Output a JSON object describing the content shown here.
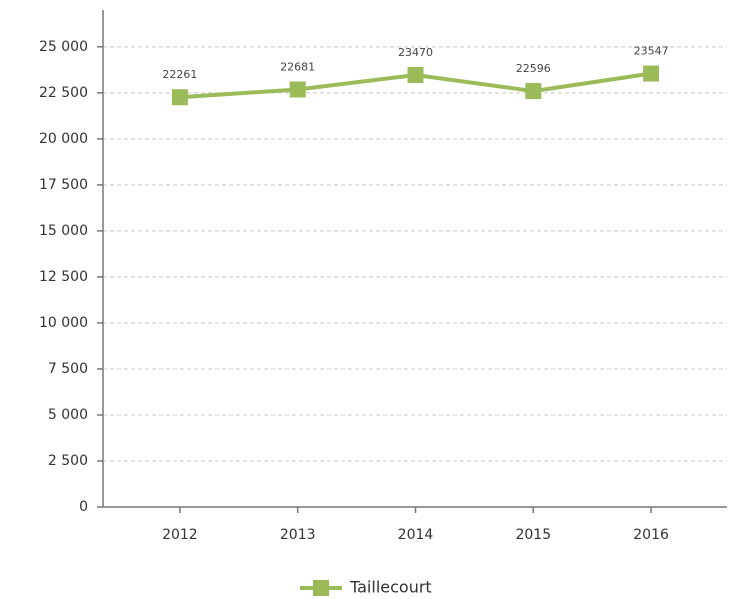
{
  "chart_data": {
    "type": "line",
    "categories": [
      "2012",
      "2013",
      "2014",
      "2015",
      "2016"
    ],
    "series": [
      {
        "name": "Taillecourt",
        "color": "#9bbb59",
        "values": [
          22261,
          22681,
          23470,
          22596,
          23547
        ]
      }
    ],
    "ylim": [
      0,
      27000
    ],
    "yticks": [
      0,
      {
        "value": 2500,
        "label": "2 500"
      },
      {
        "value": 5000,
        "label": "5 000"
      },
      {
        "value": 7500,
        "label": "7 500"
      },
      {
        "value": 10000,
        "label": "10 000"
      },
      {
        "value": 12500,
        "label": "12 500"
      },
      {
        "value": 15000,
        "label": "15 000"
      },
      {
        "value": 17500,
        "label": "17 500"
      },
      {
        "value": 20000,
        "label": "20 000"
      },
      {
        "value": 22500,
        "label": "22 500"
      },
      {
        "value": 25000,
        "label": "25 000"
      }
    ],
    "grid": true,
    "legend": "bottom"
  }
}
